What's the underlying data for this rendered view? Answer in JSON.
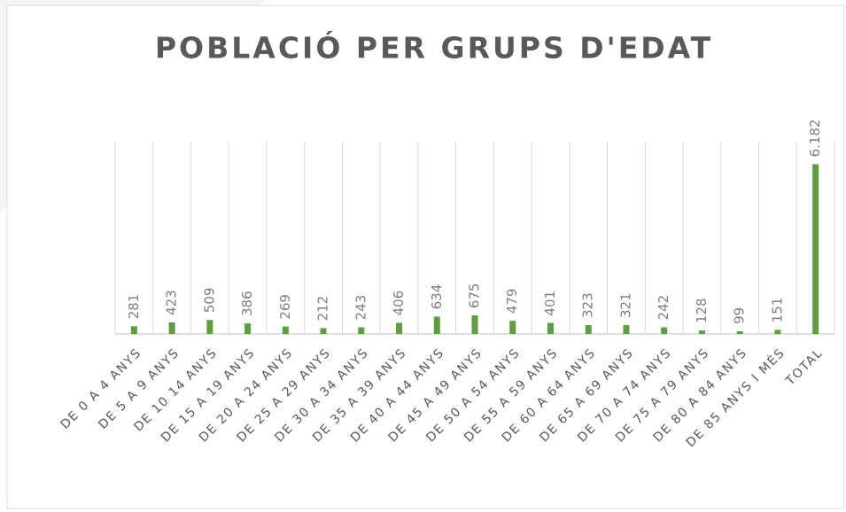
{
  "chart_data": {
    "type": "bar",
    "title": "POBLACIÓ PER GRUPS D'EDAT",
    "categories": [
      "DE 0 A 4 ANYS",
      "DE 5 A 9 ANYS",
      "DE 10 14 ANYS",
      "DE 15 A 19 ANYS",
      "DE 20 A 24 ANYS",
      "DE 25 A 29 ANYS",
      "DE 30 A 34 ANYS",
      "DE 35 A 39 ANYS",
      "DE 40 A 44 ANYS",
      "DE 45 A 49 ANYS",
      "DE 50 A 54 ANYS",
      "DE 55 A 59 ANYS",
      "DE 60 A 64 ANYS",
      "DE 65 A 69 ANYS",
      "DE 70 A 74 ANYS",
      "DE 75 A 79 ANYS",
      "DE 80 A 84 ANYS",
      "DE 85 ANYS I MÉS",
      "TOTAL"
    ],
    "values": [
      281,
      423,
      509,
      386,
      269,
      212,
      243,
      406,
      634,
      675,
      479,
      401,
      323,
      321,
      242,
      128,
      99,
      151,
      6182
    ],
    "value_labels": [
      "281",
      "423",
      "509",
      "386",
      "269",
      "212",
      "243",
      "406",
      "634",
      "675",
      "479",
      "401",
      "323",
      "321",
      "242",
      "128",
      "99",
      "151",
      "6.182"
    ],
    "color": "#5f9e3f",
    "ylim": [
      0,
      7000
    ]
  }
}
